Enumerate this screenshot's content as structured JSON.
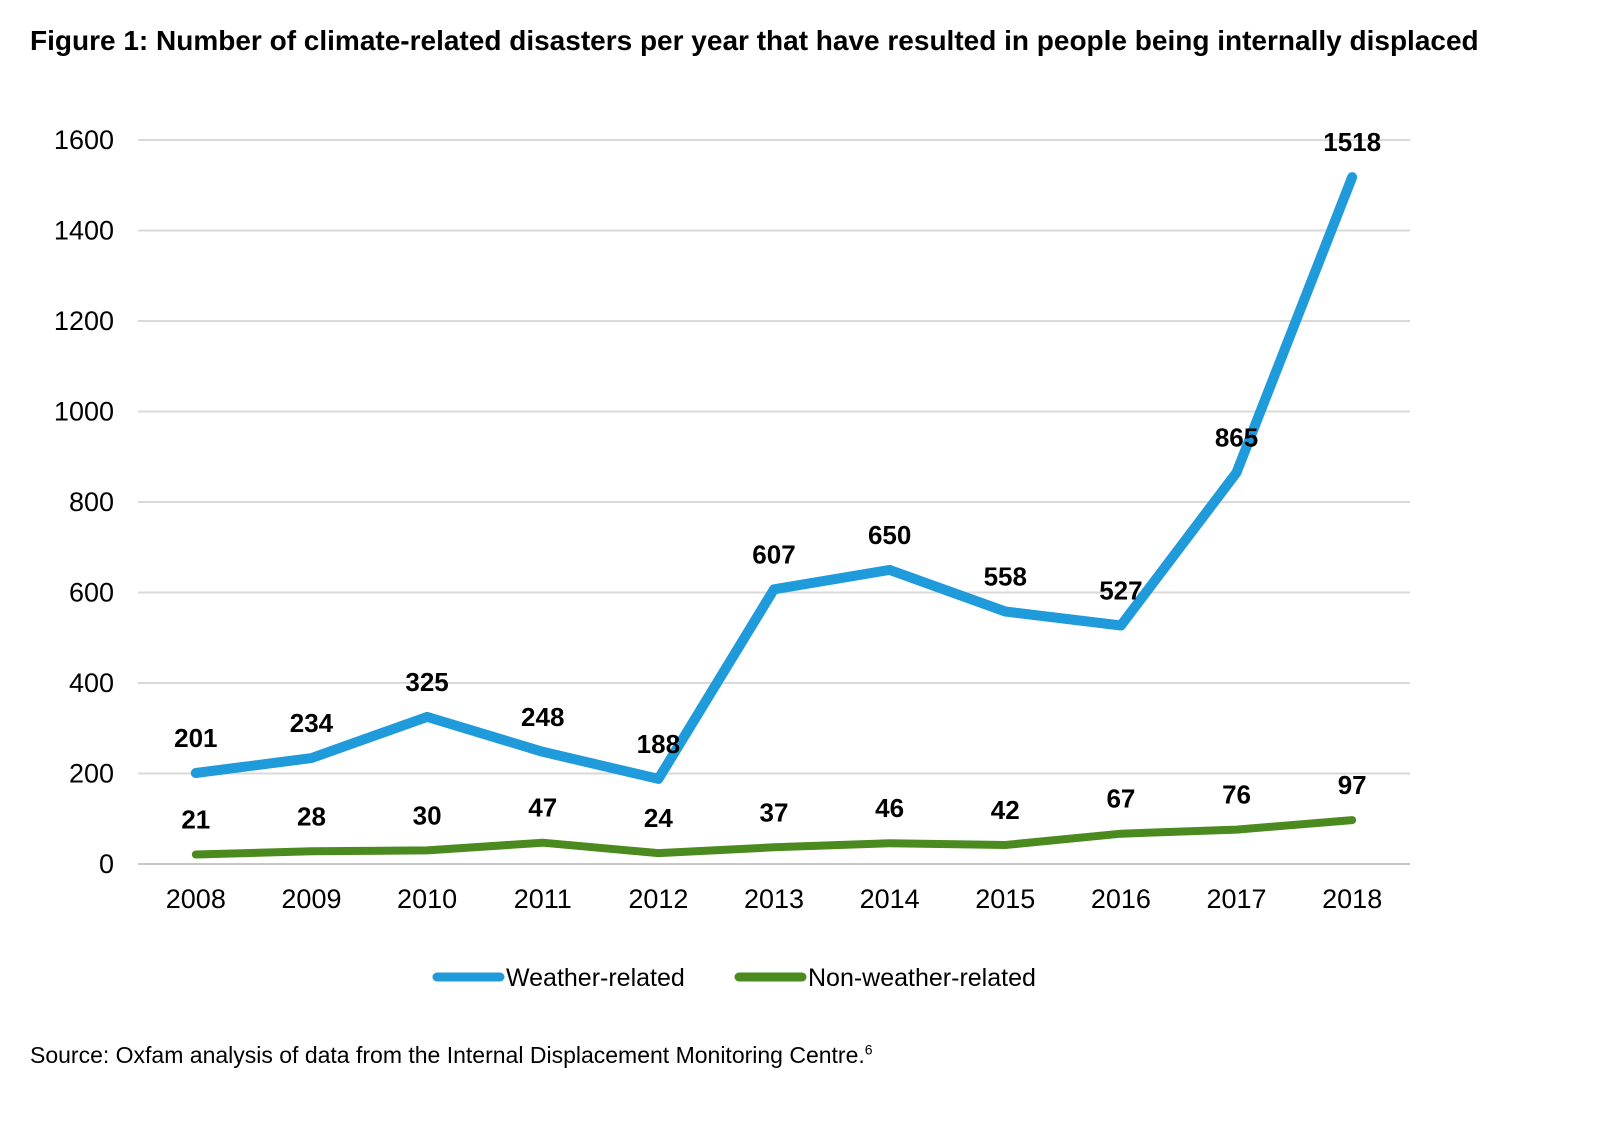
{
  "figure": {
    "title": "Figure 1: Number of climate-related disasters per year that have resulted in people being internally displaced",
    "source_text": "Source: Oxfam analysis of data from the Internal Displacement Monitoring Centre.",
    "source_footnote": "6"
  },
  "chart_data": {
    "type": "line",
    "title": "",
    "xlabel": "",
    "ylabel": "",
    "categories": [
      "2008",
      "2009",
      "2010",
      "2011",
      "2012",
      "2013",
      "2014",
      "2015",
      "2016",
      "2017",
      "2018"
    ],
    "ylim": [
      0,
      1600
    ],
    "yticks": [
      0,
      200,
      400,
      600,
      800,
      1000,
      1200,
      1400,
      1600
    ],
    "grid": true,
    "legend_position": "bottom",
    "series": [
      {
        "name": "Weather-related",
        "color": "#1f9bdb",
        "values": [
          201,
          234,
          325,
          248,
          188,
          607,
          650,
          558,
          527,
          865,
          1518
        ]
      },
      {
        "name": "Non-weather-related",
        "color": "#4a8a1e",
        "values": [
          21,
          28,
          30,
          47,
          24,
          37,
          46,
          42,
          67,
          76,
          97
        ]
      }
    ]
  }
}
